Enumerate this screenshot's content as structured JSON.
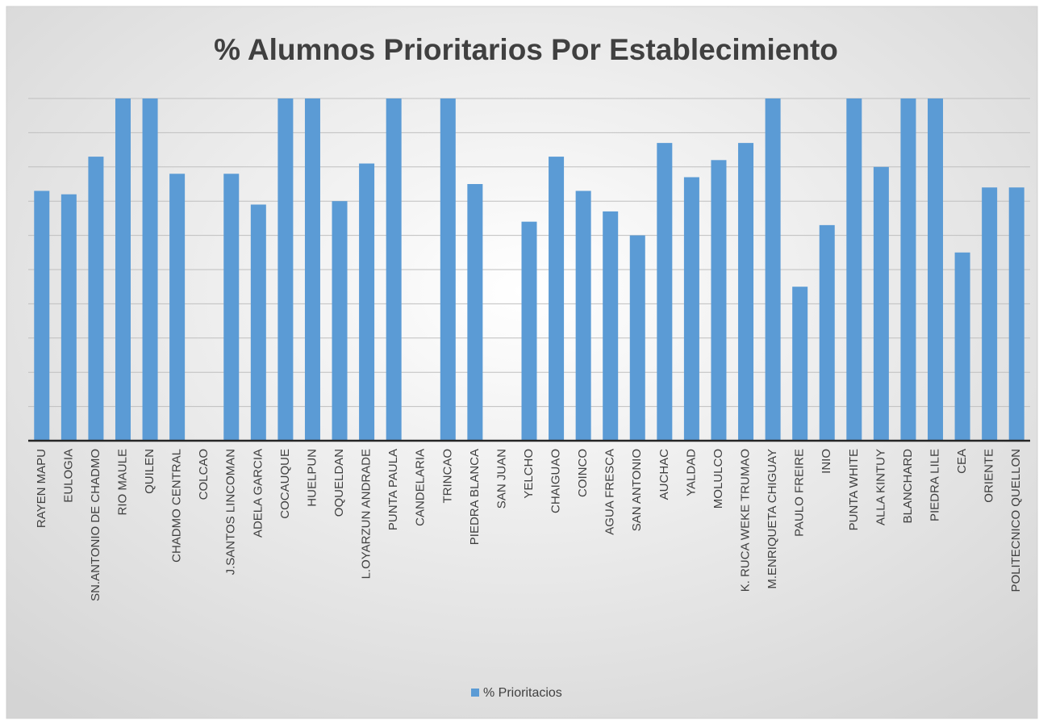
{
  "chart_data": {
    "type": "bar",
    "title": "% Alumnos Prioritarios Por Establecimiento",
    "categories": [
      "RAYEN MAPU",
      "EULOGIA",
      "SN.ANTONIO DE CHADMO",
      "RIO MAULE",
      "QUILEN",
      "CHADMO CENTRAL",
      "COLCAO",
      "J.SANTOS LINCOMAN",
      "ADELA GARCIA",
      "COCAUQUE",
      "HUELPUN",
      "OQUELDAN",
      "L.OYARZUN ANDRADE",
      "PUNTA PAULA",
      "CANDELARIA",
      "TRINCAO",
      "PIEDRA BLANCA",
      "SAN JUAN",
      "YELCHO",
      "CHAIGUAO",
      "COINCO",
      "AGUA FRESCA",
      "SAN ANTONIO",
      "AUCHAC",
      "YALDAD",
      "MOLULCO",
      "K. RUCA WEKE TRUMAO",
      "M.ENRIQUETA CHIGUAY",
      "PAULO FREIRE",
      "INIO",
      "PUNTA WHITE",
      "ALLA KINTUY",
      "BLANCHARD",
      "PIEDRA LILE",
      "CEA",
      "ORIENTE",
      "POLITECNICO QUELLON"
    ],
    "series": [
      {
        "name": "% Prioritacios",
        "color": "#5b9bd5",
        "values": [
          73,
          72,
          83,
          100,
          100,
          78,
          0,
          78,
          69,
          100,
          100,
          70,
          81,
          100,
          0,
          100,
          75,
          0,
          64,
          83,
          73,
          67,
          60,
          87,
          77,
          82,
          87,
          100,
          45,
          63,
          100,
          80,
          100,
          100,
          55,
          74,
          74
        ]
      }
    ],
    "ylim": [
      0,
      100
    ],
    "yticks": [
      0,
      10,
      20,
      30,
      40,
      50,
      60,
      70,
      80,
      90,
      100
    ],
    "grid": true,
    "legend": "bottom"
  }
}
